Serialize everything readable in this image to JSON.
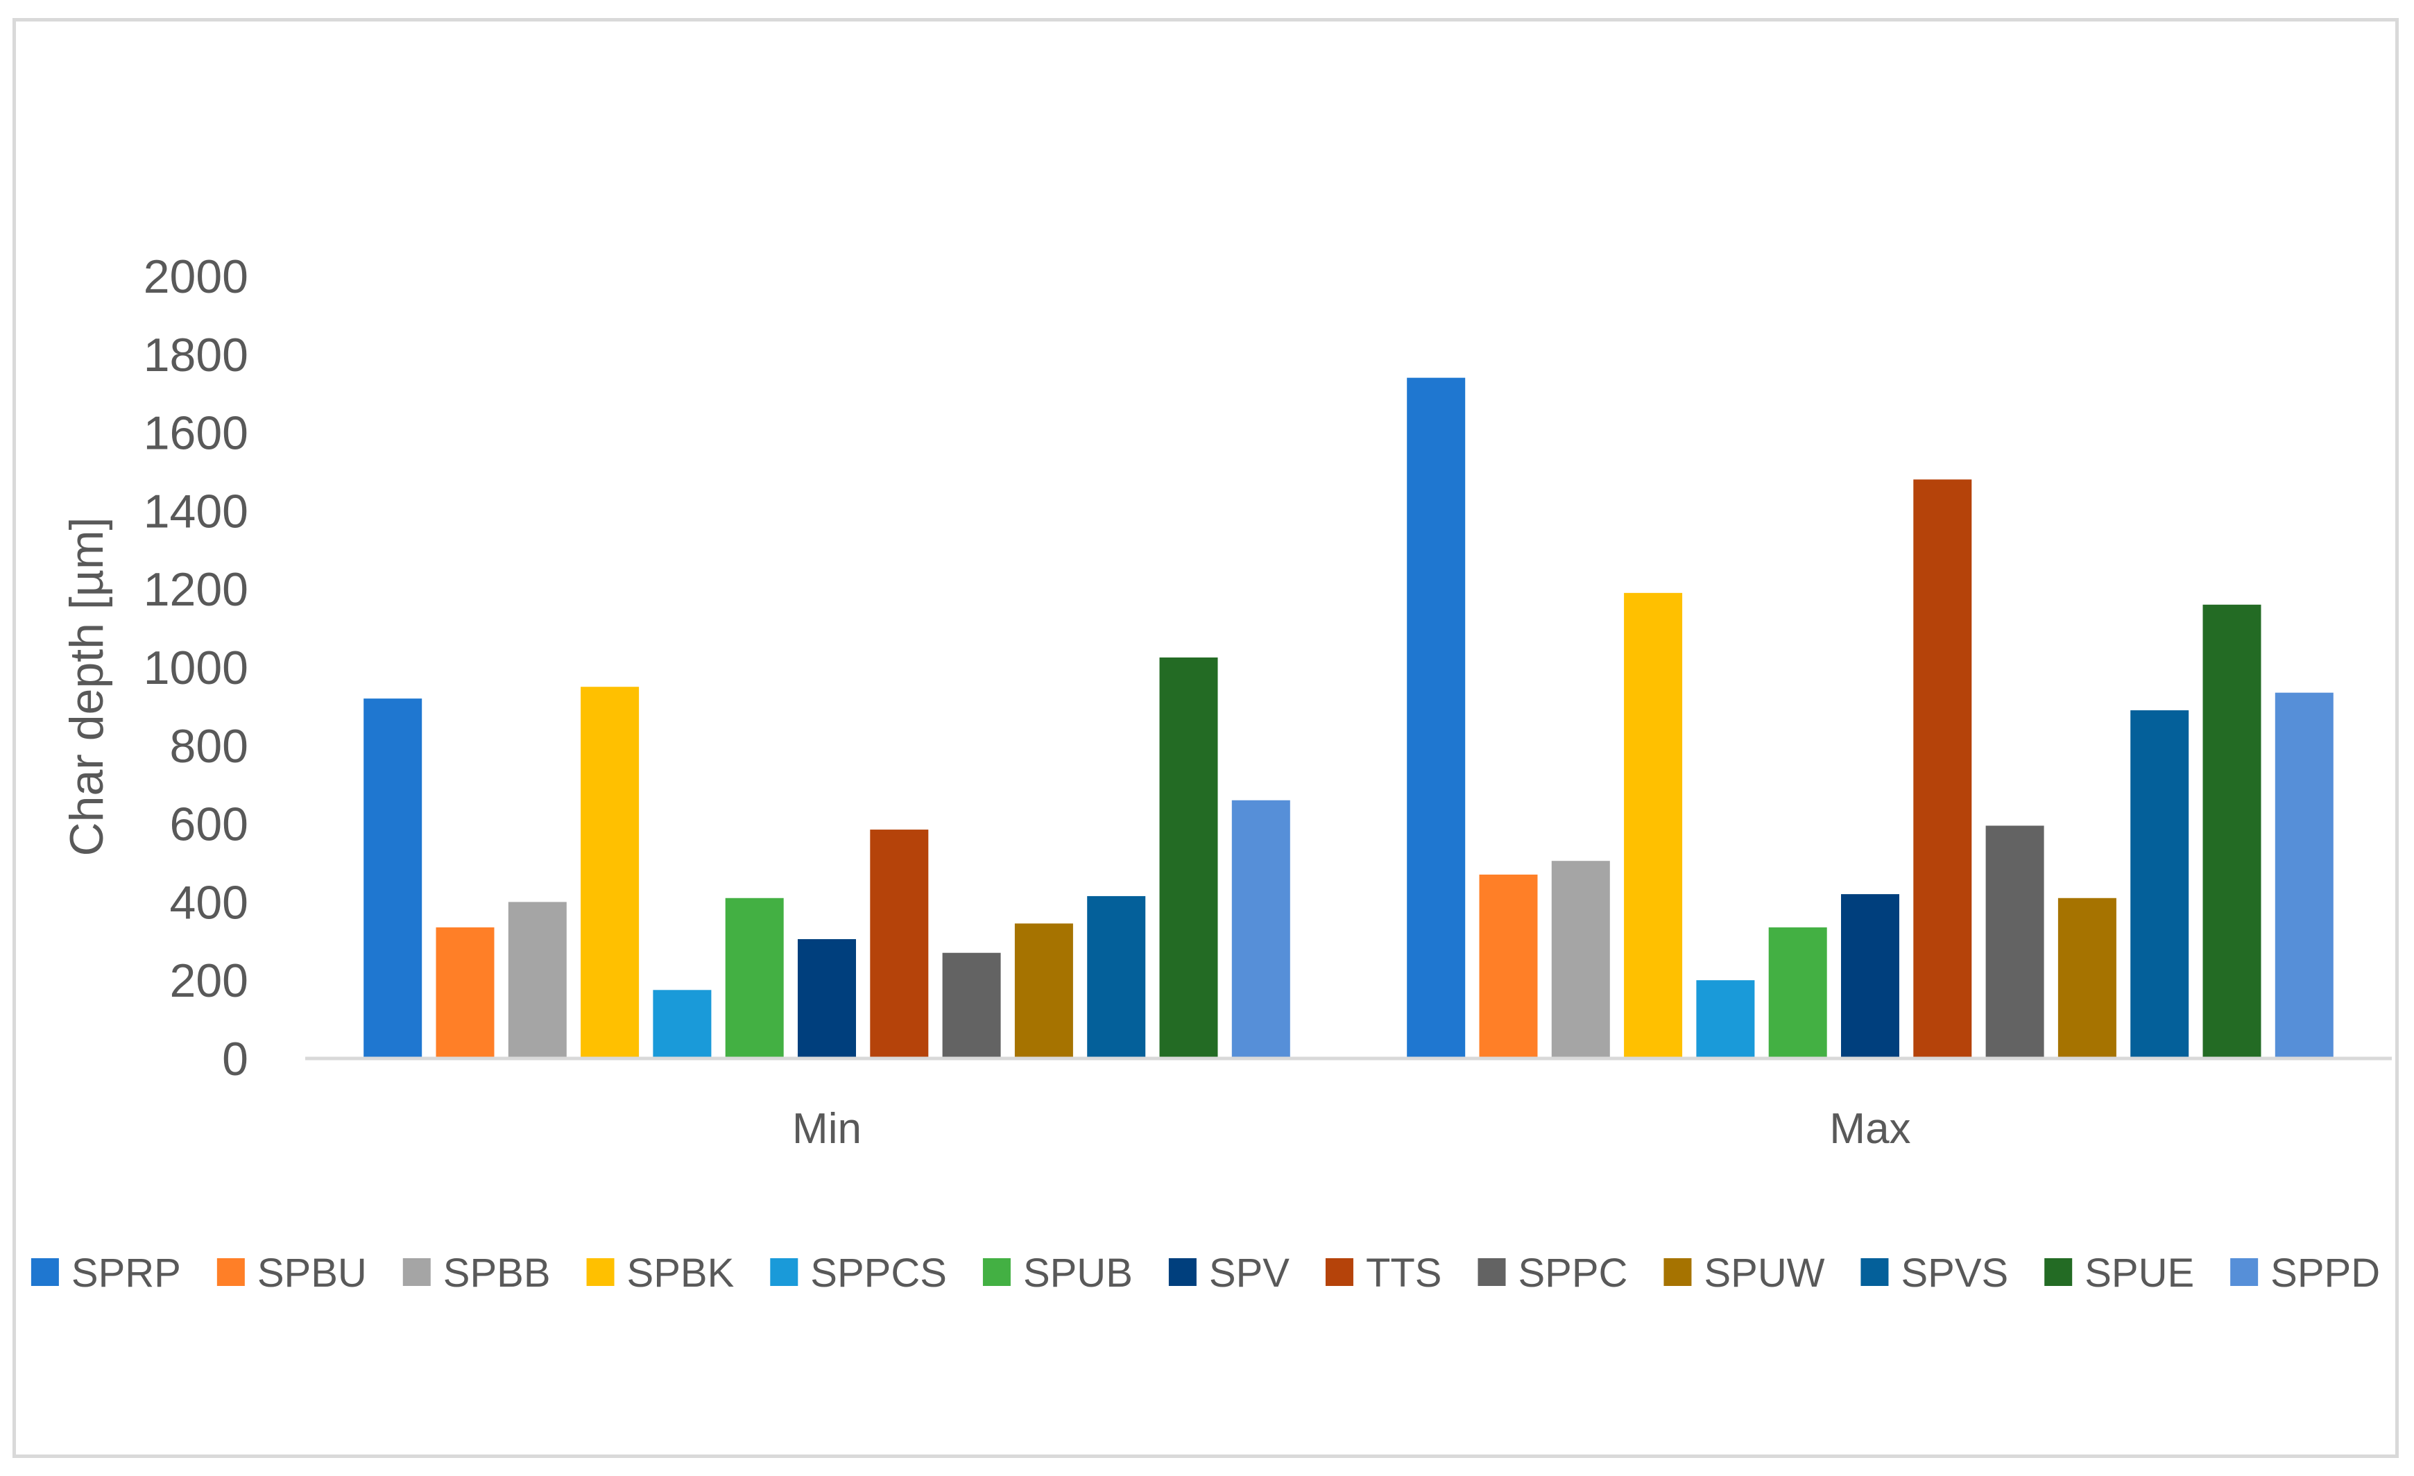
{
  "chart_data": {
    "type": "bar",
    "title": "",
    "xlabel": "",
    "ylabel": "Char depth [µm]",
    "ylim": [
      0,
      2000
    ],
    "yticks": [
      0,
      200,
      400,
      600,
      800,
      1000,
      1200,
      1400,
      1600,
      1800,
      2000
    ],
    "grid": false,
    "legend_position": "bottom",
    "categories": [
      "Min",
      "Max"
    ],
    "series": [
      {
        "name": "SPRP",
        "color": "#1f77d0",
        "values": [
          920,
          1740
        ]
      },
      {
        "name": "SPBU",
        "color": "#ff7f27",
        "values": [
          335,
          470
        ]
      },
      {
        "name": "SPBB",
        "color": "#a5a5a5",
        "values": [
          400,
          505
        ]
      },
      {
        "name": "SPBK",
        "color": "#ffc000",
        "values": [
          950,
          1190
        ]
      },
      {
        "name": "SPPCS",
        "color": "#1a9ad9",
        "values": [
          175,
          200
        ]
      },
      {
        "name": "SPUB",
        "color": "#43b043",
        "values": [
          410,
          335
        ]
      },
      {
        "name": "SPV",
        "color": "#003f7d",
        "values": [
          305,
          420
        ]
      },
      {
        "name": "TTS",
        "color": "#b5430a",
        "values": [
          585,
          1480
        ]
      },
      {
        "name": "SPPC",
        "color": "#636363",
        "values": [
          270,
          595
        ]
      },
      {
        "name": "SPUW",
        "color": "#a67300",
        "values": [
          345,
          410
        ]
      },
      {
        "name": "SPVS",
        "color": "#04609a",
        "values": [
          415,
          890
        ]
      },
      {
        "name": "SPUE",
        "color": "#236b24",
        "values": [
          1025,
          1160
        ]
      },
      {
        "name": "SPPD",
        "color": "#568fd8",
        "values": [
          660,
          935
        ]
      }
    ]
  }
}
